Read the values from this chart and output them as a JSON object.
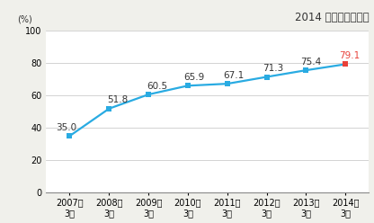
{
  "years": [
    "2007年\n3月",
    "2008年\n3月",
    "2009年\n3月",
    "2010年\n3月",
    "2011年\n3月",
    "2012年\n3月",
    "2013年\n3月",
    "2014年\n3月"
  ],
  "values": [
    35.0,
    51.8,
    60.5,
    65.9,
    67.1,
    71.3,
    75.4,
    79.1
  ],
  "line_color": "#29abe2",
  "last_point_color": "#e8413a",
  "marker_color_main": "#29abe2",
  "marker_color_last": "#e8413a",
  "label_colors": [
    "#333333",
    "#333333",
    "#333333",
    "#333333",
    "#333333",
    "#333333",
    "#333333",
    "#e8413a"
  ],
  "ylabel": "(%)",
  "ylim": [
    0,
    100
  ],
  "yticks": [
    0,
    20,
    40,
    60,
    80,
    100
  ],
  "annotation": "2014 年３月１日現在",
  "bg_color": "#f0f0eb",
  "plot_bg_color": "#ffffff",
  "grid_color": "#cccccc",
  "label_fontsize": 7.5,
  "tick_fontsize": 7.0,
  "annot_fontsize": 8.5
}
